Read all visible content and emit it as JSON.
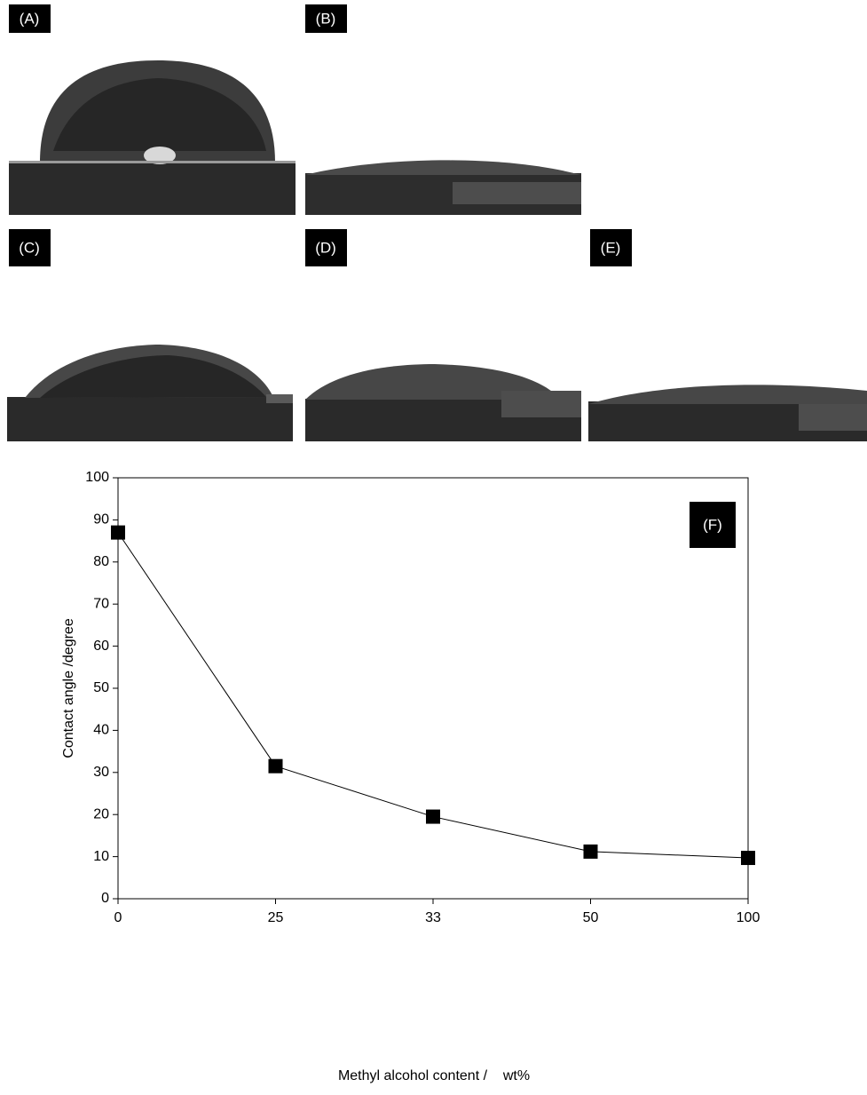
{
  "panels": {
    "labels": [
      "(A)",
      "(B)",
      "(C)",
      "(D)",
      "(E)"
    ]
  },
  "chart_data": {
    "type": "line",
    "marker": "square",
    "color": "#000000",
    "annotation": "(F)",
    "xlabel": "Methyl alcohol content /    wt%",
    "ylabel": "Contact angle /degree",
    "categories": [
      "0",
      "25",
      "33",
      "50",
      "100"
    ],
    "values": [
      87,
      31.5,
      19.5,
      11.2,
      9.7
    ],
    "ylim": [
      0,
      100
    ],
    "yticks": [
      0,
      10,
      20,
      30,
      40,
      50,
      60,
      70,
      80,
      90,
      100
    ]
  }
}
